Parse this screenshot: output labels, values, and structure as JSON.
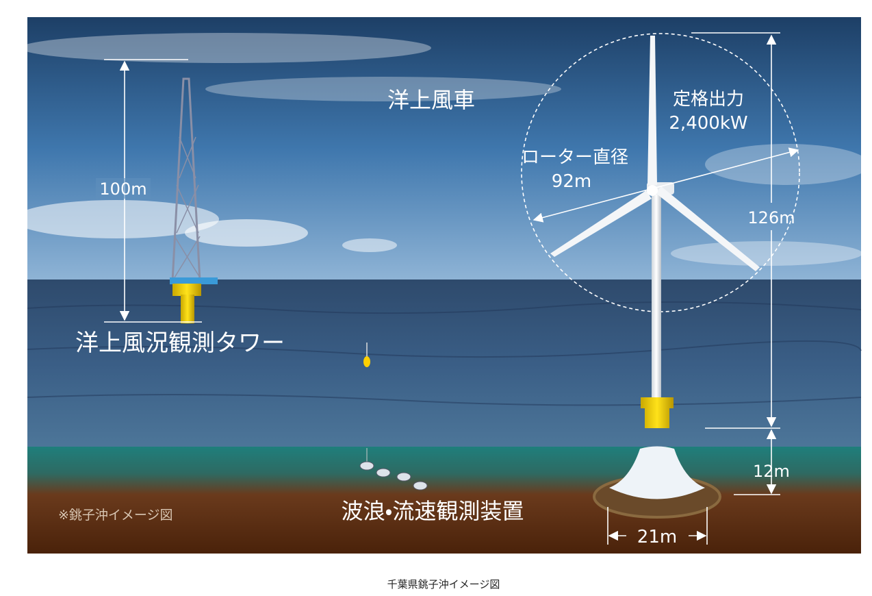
{
  "labels": {
    "turbine": "洋上風車",
    "rated_output_label": "定格出力",
    "rated_output_value": "2,400kW",
    "rotor_diameter_label": "ローター直径",
    "rotor_diameter_value": "92m",
    "turbine_height": "126m",
    "tower_height": "100m",
    "tower_name": "洋上風況観測タワー",
    "water_depth": "12m",
    "foundation_width": "21m",
    "wave_device": "波浪・流速観測装置",
    "note": "※銚子沖イメージ図"
  },
  "caption": "千葉県銚子沖イメージ図"
}
